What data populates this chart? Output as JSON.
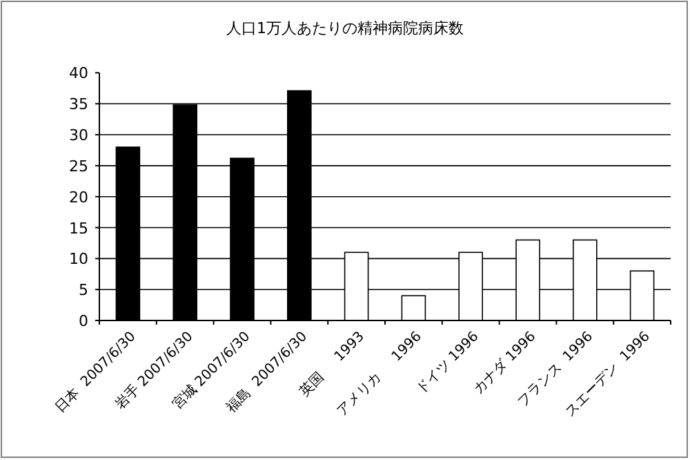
{
  "chart_data": {
    "type": "bar",
    "title": "人口1万人あたりの精神病院病床数",
    "categories": [
      "日本  2007/6/30",
      "岩手 2007/6/30",
      "宮城 2007/6/30",
      "福島  2007/6/30",
      "英国     1993",
      "アメリカ     1996",
      "ドイツ 1996",
      "カナダ 1996",
      "フランス  1996",
      "スエーデン  1996"
    ],
    "values": [
      28,
      34.8,
      26.2,
      37.1,
      11,
      4,
      11,
      13,
      13,
      8
    ],
    "colors": [
      "#000000",
      "#000000",
      "#000000",
      "#000000",
      "#ffffff",
      "#ffffff",
      "#ffffff",
      "#ffffff",
      "#ffffff",
      "#ffffff"
    ],
    "ylim": [
      0,
      40
    ],
    "yticks": [
      0,
      5,
      10,
      15,
      20,
      25,
      30,
      35,
      40
    ],
    "grid": "y"
  }
}
